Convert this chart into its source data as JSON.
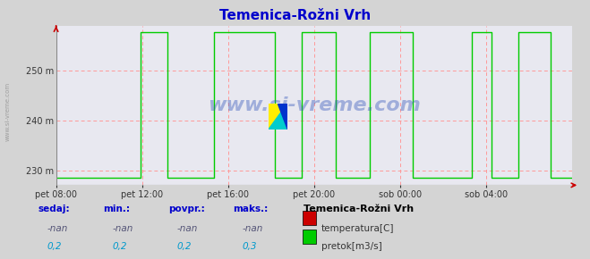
{
  "title": "Temenica-Rožni Vrh",
  "title_color": "#0000cc",
  "bg_color": "#d4d4d4",
  "plot_bg_color": "#e8e8f0",
  "grid_color": "#ff9999",
  "x_min": 0,
  "x_max": 288,
  "y_min": 227,
  "y_max": 259,
  "y_ticks": [
    230,
    240,
    250
  ],
  "y_tick_labels": [
    "230 m",
    "240 m",
    "250 m"
  ],
  "x_tick_positions": [
    0,
    48,
    96,
    144,
    192,
    240
  ],
  "x_tick_labels": [
    "pet 08:00",
    "pet 12:00",
    "pet 16:00",
    "pet 20:00",
    "sob 00:00",
    "sob 04:00"
  ],
  "watermark": "www.si-vreme.com",
  "watermark_color": "#3355bb",
  "legend_title": "Temenica-Rožni Vrh",
  "legend_labels": [
    "temperatura[C]",
    "pretok[m3/s]"
  ],
  "legend_colors": [
    "#cc0000",
    "#00cc00"
  ],
  "table_headers": [
    "sedaj:",
    "min.:",
    "povpr.:",
    "maks.:"
  ],
  "table_row1": [
    "-nan",
    "-nan",
    "-nan",
    "-nan"
  ],
  "table_row2": [
    "0,2",
    "0,2",
    "0,2",
    "0,3"
  ],
  "table_header_color": "#0000cc",
  "table_row1_color": "#555577",
  "table_row2_color": "#0099cc",
  "flow_segments": [
    {
      "x_start": 47,
      "x_end": 62
    },
    {
      "x_start": 88,
      "x_end": 122
    },
    {
      "x_start": 137,
      "x_end": 156
    },
    {
      "x_start": 175,
      "x_end": 199
    },
    {
      "x_start": 232,
      "x_end": 243
    },
    {
      "x_start": 258,
      "x_end": 276
    }
  ],
  "y_base": 228.5,
  "y_high": 257.8,
  "flow_color": "#00cc00",
  "temp_color": "#cc0000",
  "arrow_color": "#cc0000",
  "logo_colors": [
    "#ffee00",
    "#00cccc",
    "#0033cc"
  ]
}
